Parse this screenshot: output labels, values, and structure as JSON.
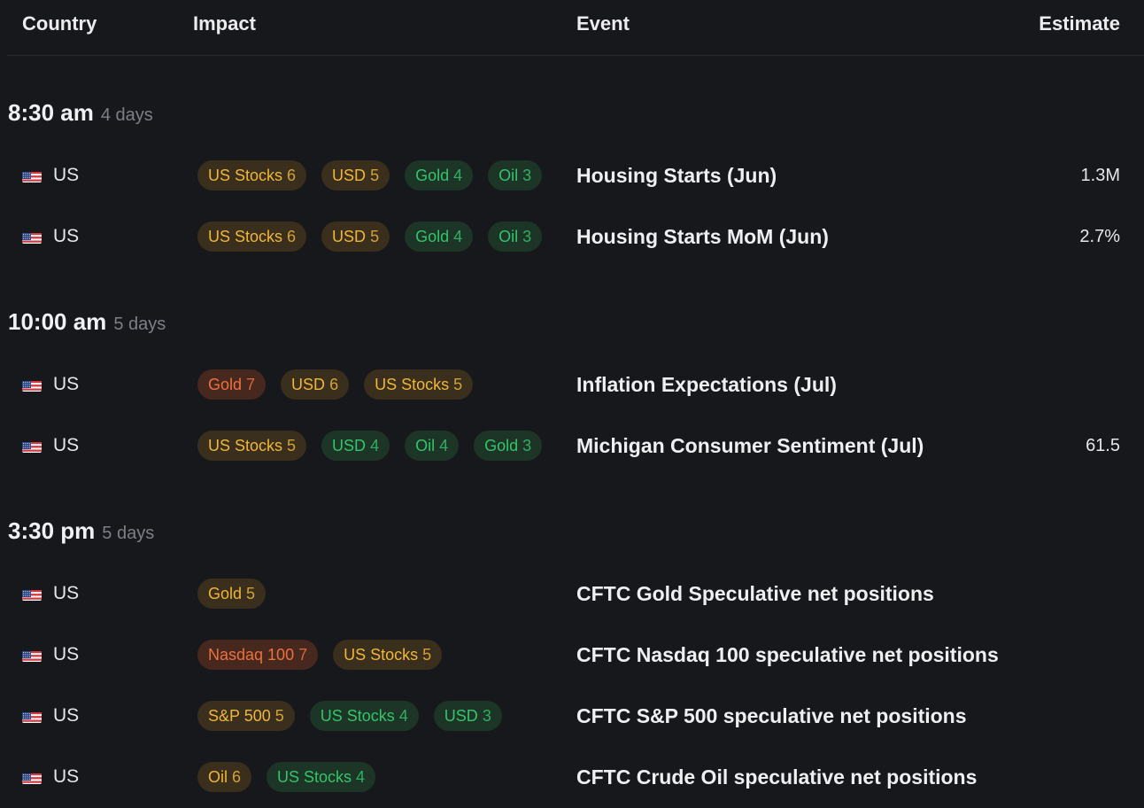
{
  "header": {
    "country": "Country",
    "impact": "Impact",
    "event": "Event",
    "estimate": "Estimate"
  },
  "colors": {
    "background": "#17181c",
    "amber": "#f0b63a",
    "green": "#34c46a",
    "red": "#f0703c"
  },
  "groups": [
    {
      "time": "8:30 am",
      "relative": "4 days",
      "rows": [
        {
          "country": "US",
          "flag_icon": "us-flag-icon",
          "impacts": [
            {
              "asset": "US Stocks",
              "level": "6",
              "color": "amber"
            },
            {
              "asset": "USD",
              "level": "5",
              "color": "amber"
            },
            {
              "asset": "Gold",
              "level": "4",
              "color": "green"
            },
            {
              "asset": "Oil",
              "level": "3",
              "color": "green"
            }
          ],
          "event": "Housing Starts (Jun)",
          "estimate": "1.3M"
        },
        {
          "country": "US",
          "flag_icon": "us-flag-icon",
          "impacts": [
            {
              "asset": "US Stocks",
              "level": "6",
              "color": "amber"
            },
            {
              "asset": "USD",
              "level": "5",
              "color": "amber"
            },
            {
              "asset": "Gold",
              "level": "4",
              "color": "green"
            },
            {
              "asset": "Oil",
              "level": "3",
              "color": "green"
            }
          ],
          "event": "Housing Starts MoM (Jun)",
          "estimate": "2.7%"
        }
      ]
    },
    {
      "time": "10:00 am",
      "relative": "5 days",
      "rows": [
        {
          "country": "US",
          "flag_icon": "us-flag-icon",
          "impacts": [
            {
              "asset": "Gold",
              "level": "7",
              "color": "red"
            },
            {
              "asset": "USD",
              "level": "6",
              "color": "amber"
            },
            {
              "asset": "US Stocks",
              "level": "5",
              "color": "amber"
            }
          ],
          "event": "Inflation Expectations (Jul)",
          "estimate": ""
        },
        {
          "country": "US",
          "flag_icon": "us-flag-icon",
          "impacts": [
            {
              "asset": "US Stocks",
              "level": "5",
              "color": "amber"
            },
            {
              "asset": "USD",
              "level": "4",
              "color": "green"
            },
            {
              "asset": "Oil",
              "level": "4",
              "color": "green"
            },
            {
              "asset": "Gold",
              "level": "3",
              "color": "green"
            }
          ],
          "event": "Michigan Consumer Sentiment (Jul)",
          "estimate": "61.5"
        }
      ]
    },
    {
      "time": "3:30 pm",
      "relative": "5 days",
      "rows": [
        {
          "country": "US",
          "flag_icon": "us-flag-icon",
          "impacts": [
            {
              "asset": "Gold",
              "level": "5",
              "color": "amber"
            }
          ],
          "event": "CFTC Gold Speculative net positions",
          "estimate": ""
        },
        {
          "country": "US",
          "flag_icon": "us-flag-icon",
          "impacts": [
            {
              "asset": "Nasdaq 100",
              "level": "7",
              "color": "red"
            },
            {
              "asset": "US Stocks",
              "level": "5",
              "color": "amber"
            }
          ],
          "event": "CFTC Nasdaq 100 speculative net positions",
          "estimate": ""
        },
        {
          "country": "US",
          "flag_icon": "us-flag-icon",
          "impacts": [
            {
              "asset": "S&P 500",
              "level": "5",
              "color": "amber"
            },
            {
              "asset": "US Stocks",
              "level": "4",
              "color": "green"
            },
            {
              "asset": "USD",
              "level": "3",
              "color": "green"
            }
          ],
          "event": "CFTC S&P 500 speculative net positions",
          "estimate": ""
        },
        {
          "country": "US",
          "flag_icon": "us-flag-icon",
          "impacts": [
            {
              "asset": "Oil",
              "level": "6",
              "color": "amber"
            },
            {
              "asset": "US Stocks",
              "level": "4",
              "color": "green"
            }
          ],
          "event": "CFTC Crude Oil speculative net positions",
          "estimate": ""
        }
      ]
    }
  ]
}
